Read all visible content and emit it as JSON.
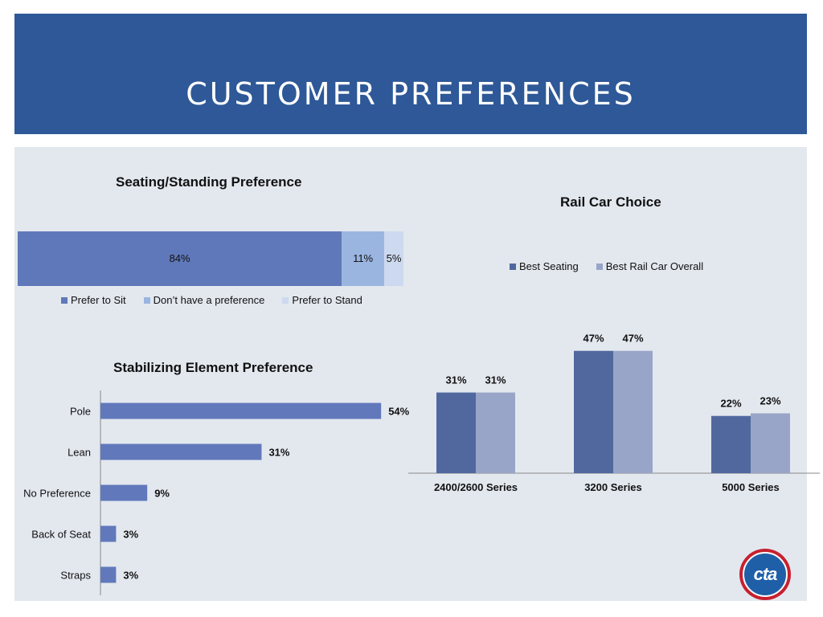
{
  "header": {
    "title": "CUSTOMER PREFERENCES"
  },
  "logo": {
    "text": "cta"
  },
  "colors": {
    "banner": "#2e5897",
    "panel": "#e3e8ef",
    "sit": "#5f78b9",
    "no_pref": "#9ab5e0",
    "stand": "#cdd9ee",
    "stabilizing_bar": "#6179bb",
    "best_seating": "#51689f",
    "best_overall": "#98a5c8"
  },
  "chart_data": [
    {
      "type": "bar",
      "orientation": "stacked-horizontal",
      "title": "Seating/Standing Preference",
      "series": [
        {
          "name": "Prefer to Sit",
          "values": [
            84
          ],
          "label": "84%"
        },
        {
          "name": "Don’t have a preference",
          "values": [
            11
          ],
          "label": "11%"
        },
        {
          "name": "Prefer to Stand",
          "values": [
            5
          ],
          "label": "5%"
        }
      ],
      "legend": "bottom"
    },
    {
      "type": "bar",
      "orientation": "horizontal",
      "title": "Stabilizing Element Preference",
      "categories": [
        "Pole",
        "Lean",
        "No Preference",
        "Back of Seat",
        "Straps"
      ],
      "values": [
        54,
        31,
        9,
        3,
        3
      ],
      "labels": [
        "54%",
        "31%",
        "9%",
        "3%",
        "3%"
      ]
    },
    {
      "type": "bar",
      "title": "Rail Car Choice",
      "categories": [
        "2400/2600 Series",
        "3200 Series",
        "5000 Series"
      ],
      "series": [
        {
          "name": "Best Seating",
          "values": [
            31,
            47,
            22
          ],
          "labels": [
            "31%",
            "47%",
            "22%"
          ]
        },
        {
          "name": "Best Rail Car Overall",
          "values": [
            31,
            47,
            23
          ],
          "labels": [
            "31%",
            "47%",
            "23%"
          ]
        }
      ],
      "legend": "top"
    }
  ]
}
